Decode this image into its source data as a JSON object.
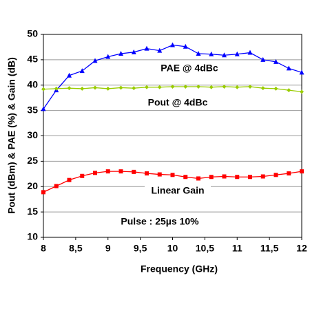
{
  "chart_data": {
    "type": "line",
    "x_label": "Frequency (GHz)",
    "y_label": "Pout (dBm) & PAE (%)  & Gain (dB)",
    "x": [
      8,
      8.2,
      8.4,
      8.6,
      8.8,
      9,
      9.2,
      9.4,
      9.6,
      9.8,
      10,
      10.2,
      10.4,
      10.6,
      10.8,
      11,
      11.2,
      11.4,
      11.6,
      11.8,
      12
    ],
    "series": [
      {
        "name": "PAE @ 4dBc",
        "color": "#0000ff",
        "marker": "triangle",
        "values": [
          35.3,
          39.0,
          41.9,
          42.8,
          44.8,
          45.6,
          46.2,
          46.5,
          47.2,
          46.8,
          47.9,
          47.6,
          46.2,
          46.1,
          45.9,
          46.1,
          46.4,
          45.0,
          44.6,
          43.3,
          42.5
        ]
      },
      {
        "name": "Pout @ 4dBc",
        "color": "#99cc00",
        "marker": "diamond",
        "values": [
          39.2,
          39.3,
          39.4,
          39.3,
          39.5,
          39.3,
          39.5,
          39.4,
          39.6,
          39.6,
          39.7,
          39.7,
          39.7,
          39.6,
          39.7,
          39.6,
          39.7,
          39.4,
          39.3,
          39.0,
          38.7
        ]
      },
      {
        "name": "Linear Gain",
        "color": "#ff0000",
        "marker": "square",
        "values": [
          18.9,
          20.1,
          21.3,
          22.1,
          22.7,
          23.0,
          23.0,
          22.9,
          22.6,
          22.4,
          22.3,
          21.9,
          21.6,
          21.9,
          22.0,
          21.9,
          21.9,
          22.0,
          22.3,
          22.6,
          23.0
        ]
      }
    ],
    "annotation": "Pulse : 25µs 10%",
    "xlim": [
      8,
      12
    ],
    "xticks": [
      8,
      {
        "value": 8.5,
        "label": "8,5"
      },
      9,
      {
        "value": 9.5,
        "label": "9,5"
      },
      10,
      {
        "value": 10.5,
        "label": "10,5"
      },
      11,
      {
        "value": 11.5,
        "label": "11,5"
      },
      12
    ],
    "ylim": [
      10,
      50
    ],
    "yticks": [
      10,
      15,
      20,
      25,
      30,
      35,
      40,
      45,
      50
    ],
    "grid": true
  }
}
